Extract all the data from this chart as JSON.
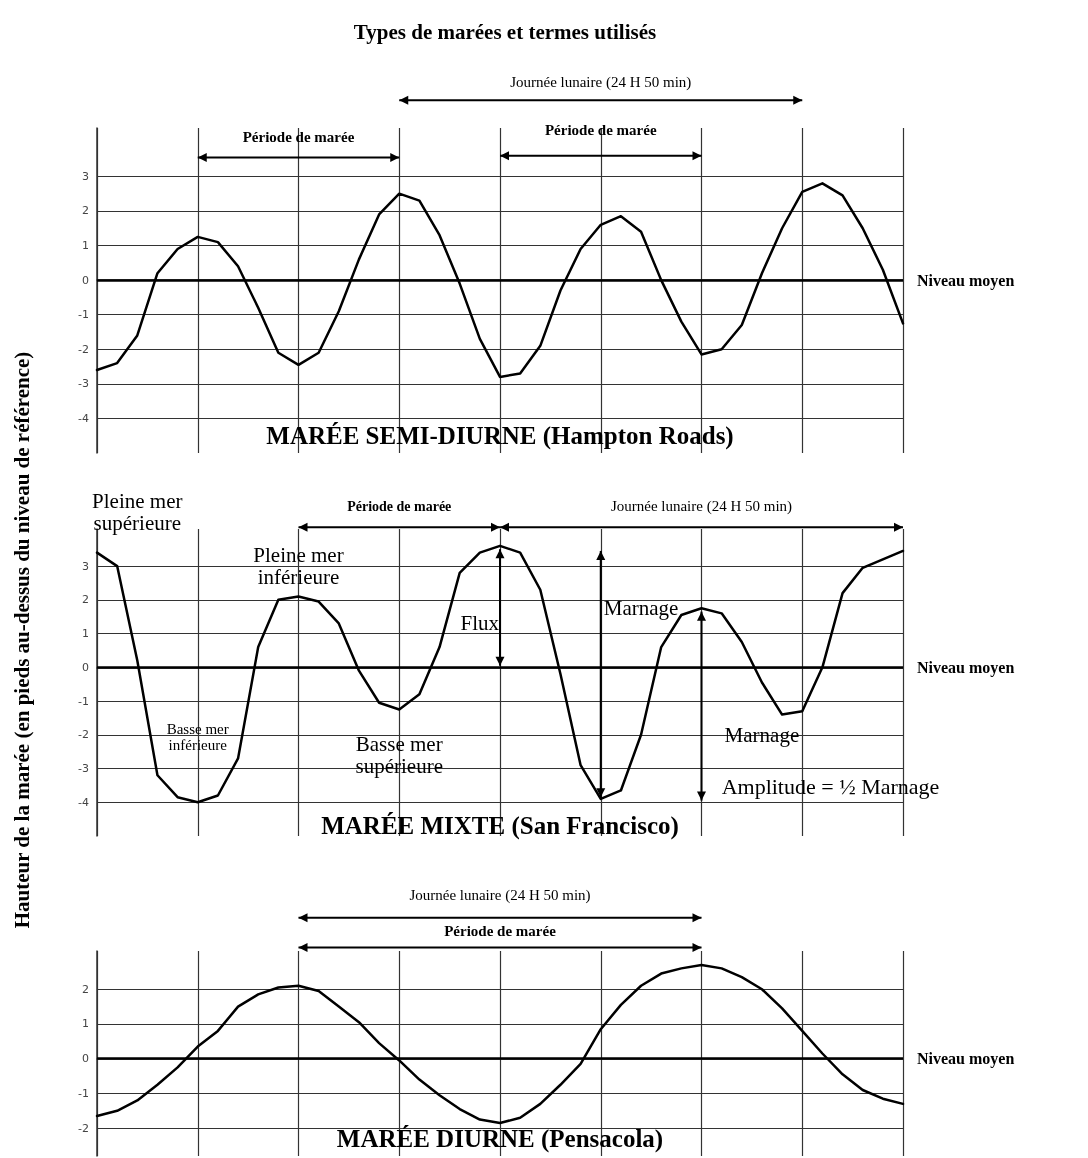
{
  "chart_data": [
    {
      "type": "line",
      "title": "Types de marées et termes utilisés",
      "subtitle": "MARÉE SEMI-DIURNE (Hampton Roads)",
      "categories": [
        null,
        null,
        null,
        null,
        null,
        null,
        null,
        null,
        null,
        null,
        null,
        null,
        null,
        null,
        null,
        null,
        null,
        null,
        null,
        null,
        null,
        null,
        null,
        null,
        null,
        null,
        null,
        null,
        null,
        null,
        null,
        null,
        null,
        null,
        null,
        null,
        null,
        null,
        null,
        null,
        null
      ],
      "series": [
        {
          "color": "#000000",
          "values": [
            -2.6,
            -2.4,
            -1.6,
            0.2,
            0.9,
            1.25,
            1.1,
            0.4,
            -0.8,
            -2.1,
            -2.45,
            -2.1,
            -0.9,
            0.6,
            1.9,
            2.5,
            2.3,
            1.3,
            -0.1,
            -1.7,
            -2.8,
            -2.7,
            -1.9,
            -0.3,
            0.9,
            1.6,
            1.85,
            1.4,
            0.0,
            -1.2,
            -2.15,
            -2.0,
            -1.3,
            0.2,
            1.5,
            2.55,
            2.8,
            2.45,
            1.5,
            0.3,
            -1.25
          ]
        }
      ],
      "ylim": [
        -5,
        4.4
      ],
      "yticks": [
        -4,
        -3,
        -2,
        -1,
        0,
        1,
        2,
        3
      ],
      "grid": true,
      "tick_labels": "y",
      "marker": "none",
      "ref_lines": [
        {
          "axis": "y",
          "value": 0,
          "label": "Niveau moyen"
        }
      ],
      "annotations": [
        "Journée lunaire (24 H 50 min)",
        "Période de marée",
        "Période de marée"
      ]
    },
    {
      "type": "line",
      "subtitle": "MARÉE MIXTE (San Francisco)",
      "ylabel": "Hauteur de la marée (en pieds au-dessus du niveau de référence)",
      "categories": [
        null,
        null,
        null,
        null,
        null,
        null,
        null,
        null,
        null,
        null,
        null,
        null,
        null,
        null,
        null,
        null,
        null,
        null,
        null,
        null,
        null,
        null,
        null,
        null,
        null,
        null,
        null,
        null,
        null,
        null,
        null,
        null,
        null,
        null,
        null,
        null,
        null,
        null,
        null,
        null,
        null
      ],
      "series": [
        {
          "color": "#000000",
          "values": [
            3.4,
            3.0,
            0.2,
            -3.2,
            -3.85,
            -4.0,
            -3.8,
            -2.7,
            0.6,
            2.0,
            2.1,
            1.95,
            1.3,
            -0.1,
            -1.05,
            -1.25,
            -0.8,
            0.6,
            2.8,
            3.4,
            3.6,
            3.4,
            2.3,
            -0.2,
            -2.9,
            -3.9,
            -3.65,
            -2.0,
            0.6,
            1.55,
            1.75,
            1.6,
            0.75,
            -0.45,
            -1.4,
            -1.3,
            0.0,
            2.2,
            2.95,
            3.2,
            3.45
          ]
        }
      ],
      "ylim": [
        -5,
        4.1
      ],
      "yticks": [
        -4,
        -3,
        -2,
        -1,
        0,
        1,
        2,
        3
      ],
      "grid": true,
      "tick_labels": "y",
      "marker": "none",
      "ref_lines": [
        {
          "axis": "y",
          "value": 0,
          "label": "Niveau moyen"
        }
      ],
      "annotations": [
        "Pleine mer supérieure",
        "Pleine mer inférieure",
        "Période de marée",
        "Journée lunaire (24 H 50 min)",
        "Flux",
        "Marnage",
        "Marnage",
        "Basse mer supérieure",
        "Basse mer inférieure",
        "Amplitude = ½ Marnage"
      ]
    },
    {
      "type": "line",
      "subtitle": "MARÉE DIURNE (Pensacola)",
      "categories": [
        null,
        null,
        null,
        null,
        null,
        null,
        null,
        null,
        null,
        null,
        null,
        null,
        null,
        null,
        null,
        null,
        null,
        null,
        null,
        null,
        null,
        null,
        null,
        null,
        null,
        null,
        null,
        null,
        null,
        null,
        null,
        null,
        null,
        null,
        null,
        null,
        null,
        null,
        null,
        null,
        null
      ],
      "series": [
        {
          "color": "#000000",
          "values": [
            -1.65,
            -1.5,
            -1.2,
            -0.75,
            -0.25,
            0.35,
            0.8,
            1.5,
            1.85,
            2.05,
            2.1,
            1.95,
            1.5,
            1.05,
            0.45,
            -0.05,
            -0.6,
            -1.05,
            -1.45,
            -1.75,
            -1.85,
            -1.7,
            -1.3,
            -0.75,
            -0.15,
            0.85,
            1.55,
            2.1,
            2.45,
            2.6,
            2.7,
            2.6,
            2.35,
            2.0,
            1.45,
            0.8,
            0.15,
            -0.45,
            -0.9,
            -1.15,
            -1.3
          ]
        }
      ],
      "ylim": [
        -2.8,
        3.1
      ],
      "yticks": [
        -2,
        -1,
        0,
        1,
        2
      ],
      "grid": true,
      "tick_labels": "y",
      "marker": "none",
      "ref_lines": [
        {
          "axis": "y",
          "value": 0,
          "label": "Niveau moyen"
        }
      ],
      "annotations": [
        "Journée lunaire (24 H 50 min)",
        "Période de marée"
      ]
    }
  ]
}
